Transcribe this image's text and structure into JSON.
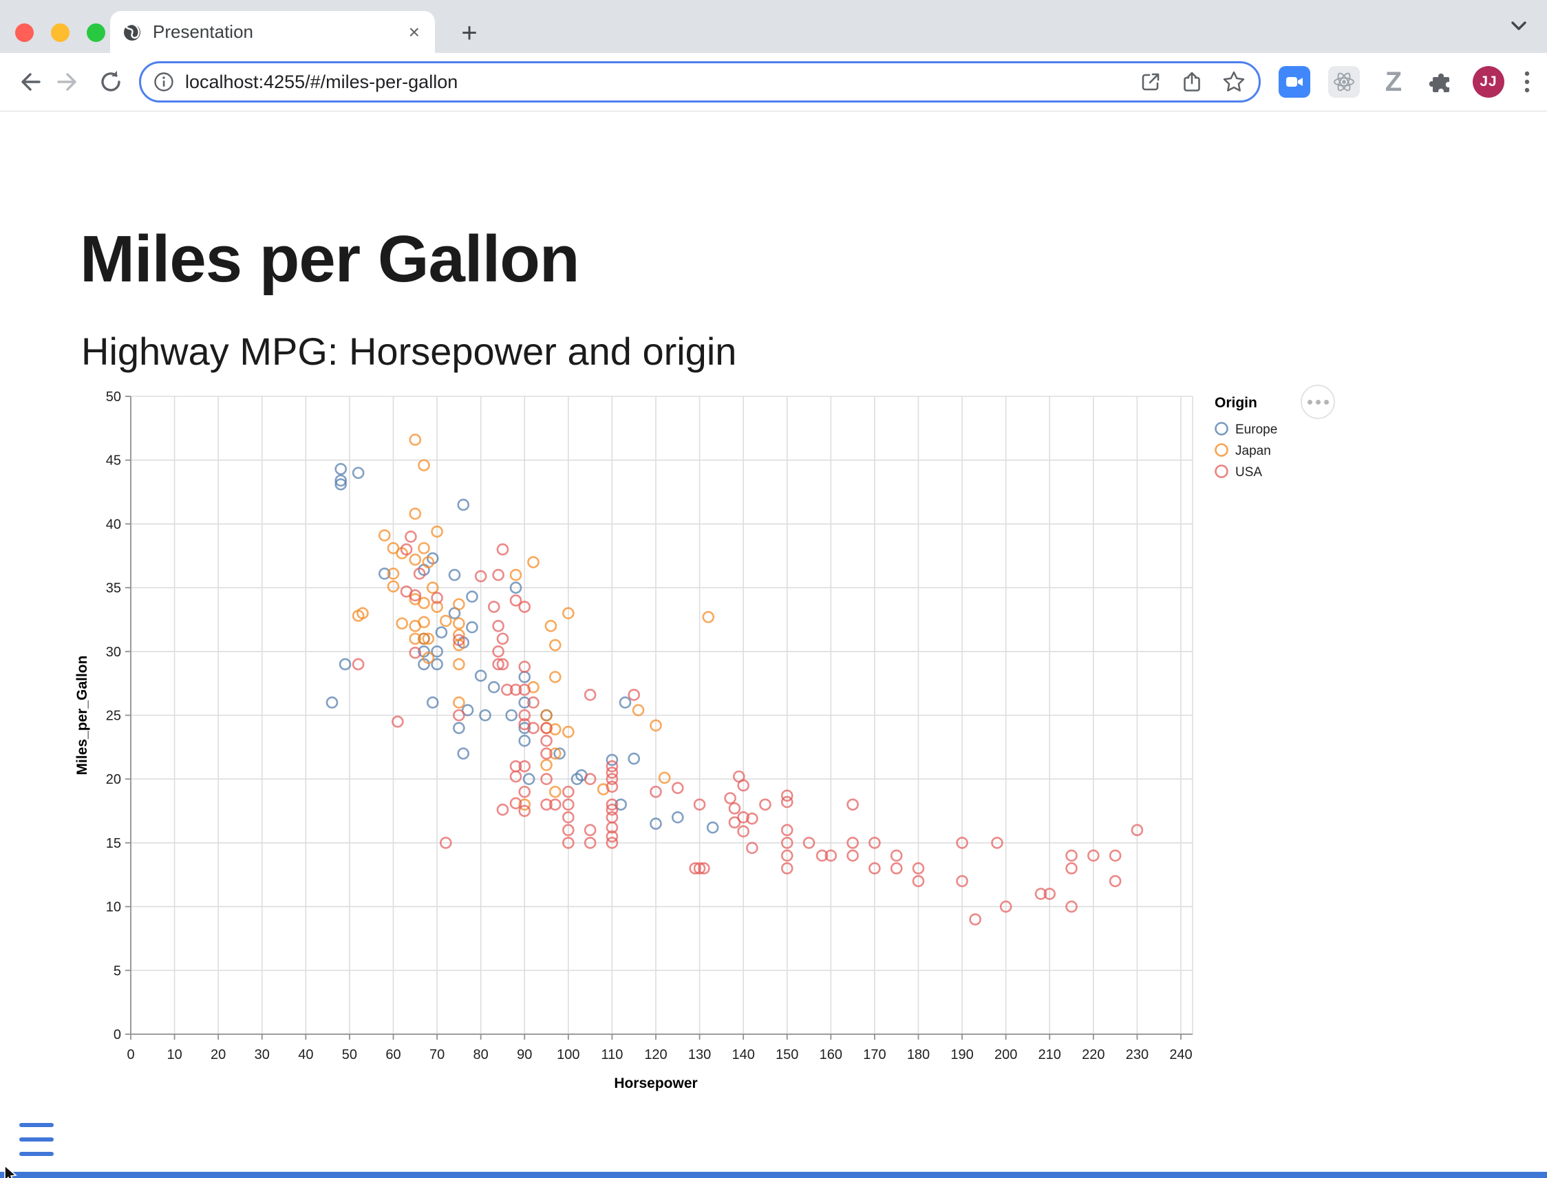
{
  "browser": {
    "traffic_lights": [
      {
        "name": "close",
        "color": "#ff5f57"
      },
      {
        "name": "minimize",
        "color": "#febc2e"
      },
      {
        "name": "maximize",
        "color": "#28c840"
      }
    ],
    "tab": {
      "title": "Presentation",
      "close_label": "×"
    },
    "new_tab_label": "+",
    "url": "localhost:4255/#/miles-per-gallon",
    "extensions": {
      "z_label": "Z",
      "avatar_initials": "JJ"
    }
  },
  "page": {
    "title": "Miles per Gallon",
    "subtitle": "Highway MPG: Horsepower and origin"
  },
  "chart_data": {
    "type": "scatter",
    "xlabel": "Horsepower",
    "ylabel": "Miles_per_Gallon",
    "xlim": [
      0,
      242
    ],
    "ylim": [
      0,
      50
    ],
    "xticks": [
      0,
      10,
      20,
      30,
      40,
      50,
      60,
      70,
      80,
      90,
      100,
      110,
      120,
      130,
      140,
      150,
      160,
      170,
      180,
      190,
      200,
      210,
      220,
      230,
      240
    ],
    "yticks": [
      0,
      5,
      10,
      15,
      20,
      25,
      30,
      35,
      40,
      45,
      50
    ],
    "grid": true,
    "marker": {
      "shape": "circle-open",
      "radius": 7.5,
      "stroke_width": 2.6,
      "opacity": 0.7
    },
    "legend": {
      "title": "Origin",
      "position": "right"
    },
    "series": [
      {
        "name": "Europe",
        "color": "#4c78a8",
        "points": [
          [
            46,
            26
          ],
          [
            48,
            43.1
          ],
          [
            48,
            43.4
          ],
          [
            48,
            44.3
          ],
          [
            49,
            29
          ],
          [
            52,
            44
          ],
          [
            58,
            36.1
          ],
          [
            67,
            29
          ],
          [
            67,
            30
          ],
          [
            67,
            31
          ],
          [
            67,
            36.4
          ],
          [
            69,
            26
          ],
          [
            69,
            37.3
          ],
          [
            70,
            29
          ],
          [
            70,
            30
          ],
          [
            71,
            31.5
          ],
          [
            74,
            33
          ],
          [
            74,
            36
          ],
          [
            75,
            24
          ],
          [
            76,
            22
          ],
          [
            76,
            30.7
          ],
          [
            76,
            41.5
          ],
          [
            77,
            25.4
          ],
          [
            78,
            31.9
          ],
          [
            78,
            34.3
          ],
          [
            80,
            28.1
          ],
          [
            81,
            25
          ],
          [
            83,
            27.2
          ],
          [
            87,
            25
          ],
          [
            88,
            35
          ],
          [
            90,
            23
          ],
          [
            90,
            24
          ],
          [
            90,
            26
          ],
          [
            90,
            28
          ],
          [
            91,
            20
          ],
          [
            95,
            25
          ],
          [
            98,
            22
          ],
          [
            102,
            20
          ],
          [
            103,
            20.3
          ],
          [
            110,
            21.5
          ],
          [
            112,
            18
          ],
          [
            113,
            26
          ],
          [
            115,
            21.6
          ],
          [
            120,
            16.5
          ],
          [
            125,
            17
          ],
          [
            133,
            16.2
          ]
        ]
      },
      {
        "name": "Japan",
        "color": "#f58518",
        "points": [
          [
            52,
            32.8
          ],
          [
            53,
            33
          ],
          [
            58,
            39.1
          ],
          [
            60,
            35.1
          ],
          [
            60,
            36.1
          ],
          [
            60,
            38.1
          ],
          [
            62,
            32.2
          ],
          [
            62,
            37.7
          ],
          [
            65,
            31
          ],
          [
            65,
            32
          ],
          [
            65,
            34.1
          ],
          [
            65,
            37.2
          ],
          [
            65,
            40.8
          ],
          [
            65,
            46.6
          ],
          [
            67,
            31
          ],
          [
            67,
            32.3
          ],
          [
            67,
            33.8
          ],
          [
            67,
            38.1
          ],
          [
            67,
            44.6
          ],
          [
            68,
            29.5
          ],
          [
            68,
            31
          ],
          [
            68,
            37
          ],
          [
            69,
            35
          ],
          [
            70,
            33.5
          ],
          [
            70,
            39.4
          ],
          [
            72,
            32.4
          ],
          [
            75,
            26
          ],
          [
            75,
            29
          ],
          [
            75,
            30.5
          ],
          [
            75,
            31.3
          ],
          [
            75,
            32.2
          ],
          [
            75,
            33.7
          ],
          [
            88,
            36
          ],
          [
            90,
            18
          ],
          [
            92,
            27.2
          ],
          [
            92,
            37
          ],
          [
            95,
            21.1
          ],
          [
            95,
            24
          ],
          [
            95,
            25
          ],
          [
            96,
            32
          ],
          [
            97,
            19
          ],
          [
            97,
            22
          ],
          [
            97,
            23.9
          ],
          [
            97,
            28
          ],
          [
            97,
            30.5
          ],
          [
            100,
            23.7
          ],
          [
            100,
            33
          ],
          [
            108,
            19.2
          ],
          [
            116,
            25.4
          ],
          [
            120,
            24.2
          ],
          [
            122,
            20.1
          ],
          [
            132,
            32.7
          ]
        ]
      },
      {
        "name": "USA",
        "color": "#e45756",
        "points": [
          [
            52,
            29
          ],
          [
            61,
            24.5
          ],
          [
            63,
            34.7
          ],
          [
            63,
            38
          ],
          [
            64,
            39
          ],
          [
            65,
            29.9
          ],
          [
            65,
            34.4
          ],
          [
            66,
            36.1
          ],
          [
            70,
            34.2
          ],
          [
            72,
            15
          ],
          [
            75,
            25
          ],
          [
            75,
            30.9
          ],
          [
            80,
            35.9
          ],
          [
            83,
            33.5
          ],
          [
            84,
            29
          ],
          [
            84,
            30
          ],
          [
            84,
            32
          ],
          [
            84,
            36
          ],
          [
            85,
            17.6
          ],
          [
            85,
            29
          ],
          [
            85,
            31
          ],
          [
            85,
            38
          ],
          [
            86,
            27
          ],
          [
            88,
            18.1
          ],
          [
            88,
            20.2
          ],
          [
            88,
            21
          ],
          [
            88,
            27
          ],
          [
            88,
            34
          ],
          [
            90,
            17.5
          ],
          [
            90,
            19
          ],
          [
            90,
            21
          ],
          [
            90,
            24.3
          ],
          [
            90,
            25
          ],
          [
            90,
            27
          ],
          [
            90,
            28.8
          ],
          [
            90,
            33.5
          ],
          [
            92,
            24
          ],
          [
            92,
            26
          ],
          [
            95,
            18
          ],
          [
            95,
            20
          ],
          [
            95,
            22
          ],
          [
            95,
            23
          ],
          [
            95,
            24
          ],
          [
            97,
            18
          ],
          [
            100,
            15
          ],
          [
            100,
            16
          ],
          [
            100,
            17
          ],
          [
            100,
            18
          ],
          [
            100,
            19
          ],
          [
            105,
            15
          ],
          [
            105,
            16
          ],
          [
            105,
            20
          ],
          [
            105,
            26.6
          ],
          [
            110,
            15
          ],
          [
            110,
            15.5
          ],
          [
            110,
            16.2
          ],
          [
            110,
            17
          ],
          [
            110,
            17.6
          ],
          [
            110,
            18
          ],
          [
            110,
            19.4
          ],
          [
            110,
            20
          ],
          [
            110,
            20.5
          ],
          [
            110,
            21
          ],
          [
            115,
            26.6
          ],
          [
            120,
            19
          ],
          [
            125,
            19.3
          ],
          [
            129,
            13
          ],
          [
            130,
            13
          ],
          [
            130,
            18
          ],
          [
            131,
            13
          ],
          [
            137,
            18.5
          ],
          [
            138,
            16.6
          ],
          [
            138,
            17.7
          ],
          [
            139,
            20.2
          ],
          [
            140,
            15.9
          ],
          [
            140,
            17
          ],
          [
            140,
            19.5
          ],
          [
            142,
            14.6
          ],
          [
            142,
            16.9
          ],
          [
            145,
            18
          ],
          [
            150,
            13
          ],
          [
            150,
            14
          ],
          [
            150,
            15
          ],
          [
            150,
            16
          ],
          [
            150,
            18.2
          ],
          [
            150,
            18.7
          ],
          [
            155,
            15
          ],
          [
            158,
            14
          ],
          [
            160,
            14
          ],
          [
            165,
            14
          ],
          [
            165,
            15
          ],
          [
            165,
            18
          ],
          [
            170,
            13
          ],
          [
            170,
            15
          ],
          [
            175,
            13
          ],
          [
            175,
            14
          ],
          [
            180,
            12
          ],
          [
            180,
            13
          ],
          [
            190,
            12
          ],
          [
            190,
            15
          ],
          [
            193,
            9
          ],
          [
            198,
            15
          ],
          [
            200,
            10
          ],
          [
            208,
            11
          ],
          [
            210,
            11
          ],
          [
            215,
            10
          ],
          [
            215,
            13
          ],
          [
            215,
            14
          ],
          [
            220,
            14
          ],
          [
            225,
            12
          ],
          [
            225,
            14
          ],
          [
            230,
            16
          ]
        ]
      }
    ]
  },
  "colors": {
    "grid": "#dddddd",
    "axis_domain": "#919191",
    "tick_label": "#1f1f1f",
    "progress_bar": "#3e76d6",
    "hamburger": "#4176d9",
    "omnibox_focus_ring": "#4e80ee"
  }
}
